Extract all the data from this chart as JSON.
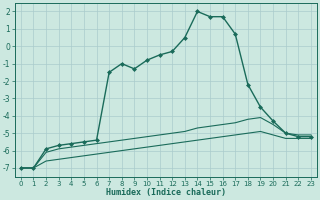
{
  "xlabel": "Humidex (Indice chaleur)",
  "ylabel": "",
  "background_color": "#cce8e0",
  "grid_color": "#aacccc",
  "line_color": "#1a6b5a",
  "xlim": [
    -0.5,
    23.5
  ],
  "ylim": [
    -7.5,
    2.5
  ],
  "yticks": [
    2,
    1,
    0,
    -1,
    -2,
    -3,
    -4,
    -5,
    -6,
    -7
  ],
  "xticks": [
    0,
    1,
    2,
    3,
    4,
    5,
    6,
    7,
    8,
    9,
    10,
    11,
    12,
    13,
    14,
    15,
    16,
    17,
    18,
    19,
    20,
    21,
    22,
    23
  ],
  "series": [
    {
      "x": [
        0,
        1,
        2,
        3,
        4,
        5,
        6,
        7,
        8,
        9,
        10,
        11,
        12,
        13,
        14,
        15,
        16,
        17,
        18,
        19,
        20,
        21,
        22,
        23
      ],
      "y": [
        -7.0,
        -7.0,
        -6.6,
        -6.5,
        -6.4,
        -6.3,
        -6.2,
        -6.1,
        -6.0,
        -5.9,
        -5.8,
        -5.7,
        -5.6,
        -5.5,
        -5.4,
        -5.3,
        -5.2,
        -5.1,
        -5.0,
        -4.9,
        -5.1,
        -5.3,
        -5.3,
        -5.3
      ],
      "marker": false,
      "lw": 0.8
    },
    {
      "x": [
        0,
        1,
        2,
        3,
        4,
        5,
        6,
        7,
        8,
        9,
        10,
        11,
        12,
        13,
        14,
        15,
        16,
        17,
        18,
        19,
        20,
        21,
        22,
        23
      ],
      "y": [
        -7.0,
        -7.0,
        -6.1,
        -5.9,
        -5.8,
        -5.7,
        -5.6,
        -5.5,
        -5.4,
        -5.3,
        -5.2,
        -5.1,
        -5.0,
        -4.9,
        -4.7,
        -4.6,
        -4.5,
        -4.4,
        -4.2,
        -4.1,
        -4.5,
        -5.0,
        -5.1,
        -5.1
      ],
      "marker": false,
      "lw": 0.8
    },
    {
      "x": [
        0,
        1,
        2,
        3,
        4,
        5,
        6,
        7,
        8,
        9,
        10,
        11,
        12,
        13,
        14,
        15,
        16,
        17,
        18,
        19,
        20,
        21,
        22,
        23
      ],
      "y": [
        -7.0,
        -7.0,
        -5.9,
        -5.7,
        -5.6,
        -5.5,
        -5.4,
        -1.5,
        -1.0,
        -1.3,
        -0.8,
        -0.5,
        -0.3,
        0.5,
        2.0,
        1.7,
        1.7,
        0.7,
        -2.2,
        -3.5,
        -4.3,
        -5.0,
        -5.2,
        -5.2
      ],
      "marker": true,
      "lw": 1.0
    }
  ]
}
